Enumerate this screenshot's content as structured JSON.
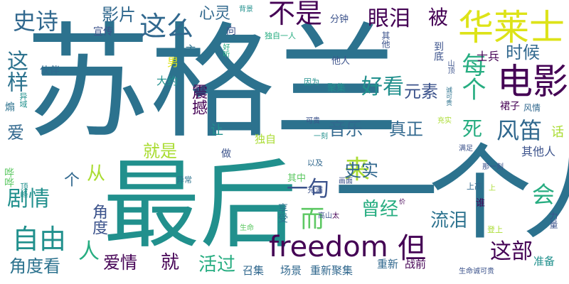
{
  "word_cloud": {
    "palette": {
      "dark_purple": "#440154",
      "indigo": "#3b528b",
      "blue": "#31688e",
      "teal_blue": "#2c728e",
      "teal": "#21908d",
      "green_teal": "#27ad81",
      "green": "#5dc863",
      "yellow_green": "#aadc32",
      "yellow": "#dde318"
    },
    "words": [
      {
        "text": "苏格兰",
        "color": "#2c728e"
      },
      {
        "text": "最后",
        "color": "#21908d"
      },
      {
        "text": "一个人",
        "color": "#2c728e"
      },
      {
        "text": "freedom",
        "color": "#440154"
      },
      {
        "text": "华莱士",
        "color": "#dde318"
      },
      {
        "text": "电影",
        "color": "#440154"
      },
      {
        "text": "这么",
        "color": "#31688e"
      },
      {
        "text": "不是",
        "color": "#440154"
      },
      {
        "text": "眼泪",
        "color": "#440154"
      },
      {
        "text": "被",
        "color": "#440154"
      },
      {
        "text": "史诗",
        "color": "#31688e"
      },
      {
        "text": "影片",
        "color": "#31688e"
      },
      {
        "text": "心灵",
        "color": "#31688e"
      },
      {
        "text": "这样",
        "color": "#2c728e"
      },
      {
        "text": "每个",
        "color": "#27ad81"
      },
      {
        "text": "好看",
        "color": "#21908d"
      },
      {
        "text": "元素",
        "color": "#3b528b"
      },
      {
        "text": "时候",
        "color": "#31688e"
      },
      {
        "text": "风笛",
        "color": "#31688e"
      },
      {
        "text": "死",
        "color": "#27ad81"
      },
      {
        "text": "音乐",
        "color": "#31688e"
      },
      {
        "text": "真正",
        "color": "#31688e"
      },
      {
        "text": "震撼",
        "color": "#440154"
      },
      {
        "text": "爱",
        "color": "#31688e"
      },
      {
        "text": "就是",
        "color": "#aadc32"
      },
      {
        "text": "让",
        "color": "#21908d"
      },
      {
        "text": "一句",
        "color": "#3b528b"
      },
      {
        "text": "来",
        "color": "#aadc32"
      },
      {
        "text": "会",
        "color": "#27ad81"
      },
      {
        "text": "剧情",
        "color": "#21908d"
      },
      {
        "text": "史实",
        "color": "#31688e"
      },
      {
        "text": "自由",
        "color": "#21908d"
      },
      {
        "text": "角度",
        "color": "#3b528b"
      },
      {
        "text": "而",
        "color": "#5dc863"
      },
      {
        "text": "曾经",
        "color": "#27ad81"
      },
      {
        "text": "但",
        "color": "#440154"
      },
      {
        "text": "流泪",
        "color": "#2c728e"
      },
      {
        "text": "这部",
        "color": "#440154"
      },
      {
        "text": "人",
        "color": "#27ad81"
      },
      {
        "text": "角度看",
        "color": "#2c728e"
      },
      {
        "text": "爱情",
        "color": "#440154"
      },
      {
        "text": "就",
        "color": "#440154"
      },
      {
        "text": "活过",
        "color": "#27ad81"
      },
      {
        "text": "从",
        "color": "#aadc32"
      },
      {
        "text": "个",
        "color": "#31688e"
      },
      {
        "text": "宣传",
        "color": "#3b528b"
      },
      {
        "text": "主",
        "color": "#2c728e"
      },
      {
        "text": "男",
        "color": "#dde318"
      },
      {
        "text": "伙伴",
        "color": "#31688e"
      },
      {
        "text": "大约",
        "color": "#21908d"
      },
      {
        "text": "向",
        "color": "#3b528b"
      },
      {
        "text": "好听",
        "color": "#27ad81"
      },
      {
        "text": "背景",
        "color": "#21908d"
      },
      {
        "text": "分钟",
        "color": "#3b528b"
      },
      {
        "text": "独自一人",
        "color": "#27ad81"
      },
      {
        "text": "其他",
        "color": "#3b528b"
      },
      {
        "text": "到底",
        "color": "#3b528b"
      },
      {
        "text": "山顶",
        "color": "#3b528b"
      },
      {
        "text": "士兵",
        "color": "#440154"
      },
      {
        "text": "他人",
        "color": "#3b528b"
      },
      {
        "text": "因为",
        "color": "#21908d"
      },
      {
        "text": "聚集",
        "color": "#21908d"
      },
      {
        "text": "诚可贵",
        "color": "#2c728e"
      },
      {
        "text": "裙子",
        "color": "#440154"
      },
      {
        "text": "风情",
        "color": "#31688e"
      },
      {
        "text": "可贵",
        "color": "#3b528b"
      },
      {
        "text": "充实",
        "color": "#aadc32"
      },
      {
        "text": "话",
        "color": "#aadc32"
      },
      {
        "text": "其他人",
        "color": "#3b528b"
      },
      {
        "text": "满足",
        "color": "#3b528b"
      },
      {
        "text": "一刻",
        "color": "#21908d"
      },
      {
        "text": "异域",
        "color": "#21908d"
      },
      {
        "text": "煽",
        "color": "#2c728e"
      },
      {
        "text": "哗哗",
        "color": "#5dc863"
      },
      {
        "text": "顶峰",
        "color": "#21908d"
      },
      {
        "text": "异常",
        "color": "#2c728e"
      },
      {
        "text": "做",
        "color": "#3b528b"
      },
      {
        "text": "独自",
        "color": "#aadc32"
      },
      {
        "text": "其中",
        "color": "#5dc863"
      },
      {
        "text": "以及",
        "color": "#31688e"
      },
      {
        "text": "那一刻",
        "color": "#3b528b"
      },
      {
        "text": "享受",
        "color": "#2c728e"
      },
      {
        "text": "画面",
        "color": "#3b528b"
      },
      {
        "text": "充满",
        "color": "#3b528b"
      },
      {
        "text": "上高",
        "color": "#31688e"
      },
      {
        "text": "谁",
        "color": "#440154"
      },
      {
        "text": "上",
        "color": "#aadc32"
      },
      {
        "text": "高山",
        "color": "#3b528b"
      },
      {
        "text": "太",
        "color": "#440154"
      },
      {
        "text": "价",
        "color": "#440154"
      },
      {
        "text": "力量",
        "color": "#3b528b"
      },
      {
        "text": "生命",
        "color": "#5dc863"
      },
      {
        "text": "登上",
        "color": "#aadc32"
      },
      {
        "text": "召集",
        "color": "#31688e"
      },
      {
        "text": "场景",
        "color": "#31688e"
      },
      {
        "text": "重新聚集",
        "color": "#31688e"
      },
      {
        "text": "重新",
        "color": "#31688e"
      },
      {
        "text": "战前",
        "color": "#440154"
      },
      {
        "text": "准备",
        "color": "#21908d"
      },
      {
        "text": "生命诚可贵",
        "color": "#3b528b"
      }
    ]
  }
}
